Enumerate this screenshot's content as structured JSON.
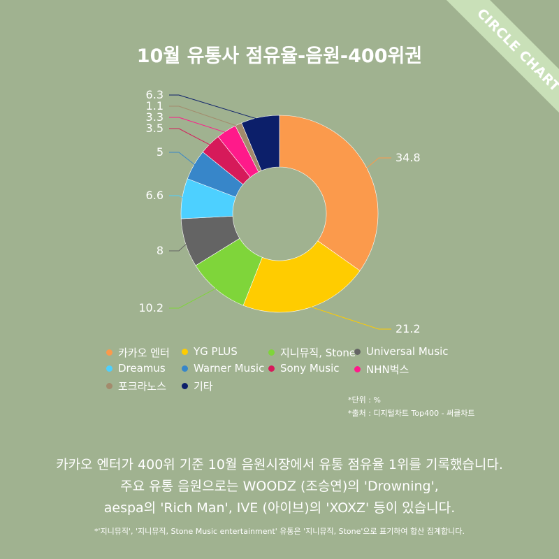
{
  "ribbon": "CIRCLE CHART",
  "chart_data": {
    "type": "pie",
    "variant": "donut",
    "title": "10월 유통사 점유율-음원-400위권",
    "unit": "%",
    "categories": [
      "카카오 엔터",
      "YG PLUS",
      "지니뮤직, Stone",
      "Universal Music",
      "Dreamus",
      "Warner Music",
      "Sony Music",
      "NHN벅스",
      "포크라노스",
      "기타"
    ],
    "values": [
      34.8,
      21.2,
      10.2,
      8,
      6.6,
      5,
      3.5,
      3.3,
      1.1,
      6.3
    ],
    "value_labels": [
      "34.8",
      "21.2",
      "10.2",
      "8",
      "6.6",
      "5",
      "3.5",
      "3.3",
      "1.1",
      "6.3"
    ],
    "colors": [
      "#fb9a4c",
      "#ffcc00",
      "#7fd53a",
      "#646464",
      "#4dd0ff",
      "#3786c9",
      "#d61a5a",
      "#ff1a8a",
      "#a38b6c",
      "#0c1f6a"
    ],
    "legend_placement": "bottom"
  },
  "notes": {
    "unit": "*단위 : %",
    "source": "*출처 : 디지털차트 Top400 - 써클차트"
  },
  "description": [
    "카카오 엔터가 400위 기준 10월 음원시장에서 유통 점유율 1위를 기록했습니다.",
    "주요 유통 음원으로는 WOODZ (조승연)의 'Drowning',",
    "aespa의 'Rich Man', IVE (아이브)의 'XOXZ' 등이 있습니다."
  ],
  "footnote": "*'지니뮤직', '지니뮤직, Stone Music entertainment' 유통은 '지니뮤직, Stone'으로 표기하여 합산 집계합니다."
}
